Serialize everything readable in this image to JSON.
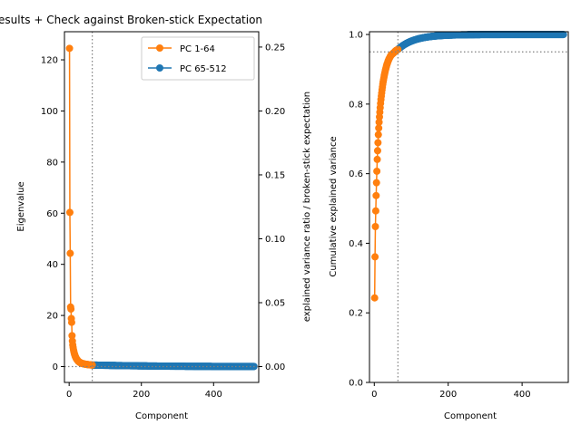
{
  "figure": {
    "title": "esults + Check against Broken-stick Expectation"
  },
  "colors": {
    "orange": "#ff7f0e",
    "blue": "#1f77b4",
    "ref": "#808080"
  },
  "chart_data": [
    {
      "type": "line",
      "xlabel": "Component",
      "ylabel": "Eigenvalue",
      "y2label": "explained variance ratio / broken-stick expectation",
      "xlim": [
        -13,
        525
      ],
      "ylim": [
        -6.2,
        131
      ],
      "y2lim": [
        -0.0124,
        0.262
      ],
      "xticks": [
        "0",
        "200",
        "400"
      ],
      "yticks": [
        "0",
        "20",
        "40",
        "60",
        "80",
        "100",
        "120"
      ],
      "y2ticks": [
        "0.00",
        "0.05",
        "0.10",
        "0.15",
        "0.20",
        "0.25"
      ],
      "grid": false,
      "legend": "top-right",
      "vline_x": 64,
      "hline_y2": 0.0,
      "series": [
        {
          "name": "PC 1-64",
          "color": "orange",
          "x": [
            1,
            2,
            3,
            4,
            5,
            6,
            7,
            8,
            9,
            10,
            11,
            12,
            13,
            14,
            15,
            16,
            17,
            18,
            19,
            20,
            21,
            22,
            23,
            24,
            25,
            26,
            27,
            28,
            29,
            30,
            31,
            32,
            33,
            34,
            35,
            36,
            37,
            38,
            39,
            40,
            41,
            42,
            43,
            44,
            45,
            46,
            47,
            48,
            49,
            50,
            51,
            52,
            53,
            54,
            55,
            56,
            57,
            58,
            59,
            60,
            61,
            62,
            63,
            64
          ],
          "values": [
            124.5,
            60.3,
            44.3,
            23.3,
            22.5,
            18.8,
            17.3,
            12.1,
            10.0,
            8.5,
            7.5,
            6.6,
            5.9,
            5.3,
            4.8,
            4.4,
            4.0,
            3.7,
            3.4,
            3.1,
            2.9,
            2.7,
            2.5,
            2.3,
            2.2,
            2.0,
            1.9,
            1.8,
            1.7,
            1.6,
            1.5,
            1.45,
            1.4,
            1.35,
            1.3,
            1.25,
            1.2,
            1.15,
            1.1,
            1.07,
            1.04,
            1.01,
            0.98,
            0.95,
            0.92,
            0.9,
            0.88,
            0.86,
            0.84,
            0.82,
            0.8,
            0.78,
            0.76,
            0.74,
            0.72,
            0.7,
            0.69,
            0.68,
            0.67,
            0.66,
            0.65,
            0.64,
            0.63,
            0.62
          ]
        },
        {
          "name": "PC 65-512",
          "color": "blue",
          "x_start": 65,
          "x_end": 512,
          "start_value": 0.6,
          "end_value": 0.05
        }
      ]
    },
    {
      "type": "line",
      "xlabel": "",
      "axis_xlabel": "Component",
      "ylabel": "Cumulative explained variance",
      "xlim": [
        -13,
        525
      ],
      "ylim": [
        0.0,
        1.008
      ],
      "xticks": [
        "0",
        "200",
        "400"
      ],
      "yticks": [
        "0.0",
        "0.2",
        "0.4",
        "0.6",
        "0.8",
        "1.0"
      ],
      "grid": false,
      "vline_x": 64,
      "hline_y": 0.95,
      "series": [
        {
          "color": "orange",
          "x": [
            1,
            2,
            3,
            4,
            5,
            6,
            7,
            8,
            9,
            10,
            11,
            12,
            13,
            14,
            15,
            16,
            17,
            18,
            19,
            20,
            21,
            22,
            23,
            24,
            25,
            26,
            27,
            28,
            29,
            30,
            31,
            32,
            33,
            34,
            35,
            36,
            37,
            38,
            39,
            40,
            41,
            42,
            43,
            44,
            45,
            46,
            47,
            48,
            49,
            50,
            51,
            52,
            53,
            54,
            55,
            56,
            57,
            58,
            59,
            60,
            61,
            62,
            63,
            64
          ],
          "values": [
            0.243,
            0.361,
            0.448,
            0.493,
            0.537,
            0.574,
            0.607,
            0.641,
            0.666,
            0.689,
            0.712,
            0.731,
            0.748,
            0.763,
            0.777,
            0.79,
            0.802,
            0.813,
            0.823,
            0.832,
            0.841,
            0.849,
            0.857,
            0.864,
            0.87,
            0.876,
            0.882,
            0.887,
            0.892,
            0.897,
            0.901,
            0.905,
            0.909,
            0.913,
            0.916,
            0.919,
            0.922,
            0.925,
            0.928,
            0.93,
            0.932,
            0.934,
            0.936,
            0.938,
            0.94,
            0.941,
            0.942,
            0.943,
            0.944,
            0.945,
            0.946,
            0.947,
            0.948,
            0.949,
            0.95,
            0.951,
            0.952,
            0.953,
            0.954,
            0.955,
            0.955,
            0.956,
            0.956,
            0.957
          ]
        },
        {
          "color": "blue",
          "x_start": 65,
          "x_end": 512,
          "start_value": 0.958,
          "end_value": 1.0
        }
      ]
    }
  ]
}
